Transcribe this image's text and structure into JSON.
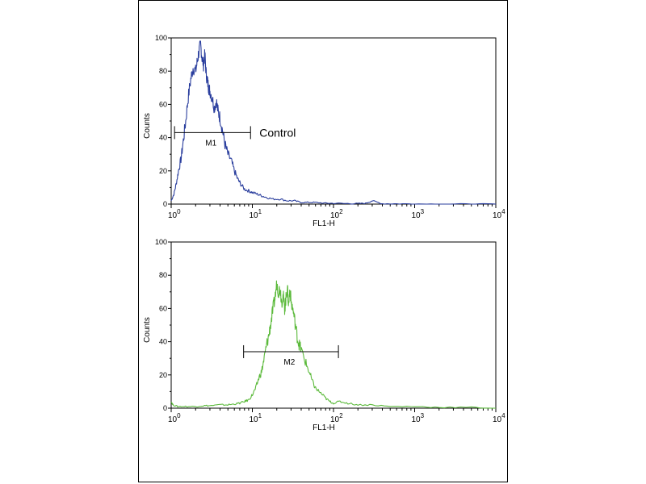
{
  "chart_data": [
    {
      "type": "histogram",
      "panel": "top",
      "xlabel": "FL1-H",
      "ylabel": "Counts",
      "x_scale": "log",
      "xlim": [
        1,
        10000
      ],
      "ylim": [
        0,
        100
      ],
      "x_ticks": [
        {
          "base": "10",
          "exp": "0"
        },
        {
          "base": "10",
          "exp": "1"
        },
        {
          "base": "10",
          "exp": "2"
        },
        {
          "base": "10",
          "exp": "3"
        },
        {
          "base": "10",
          "exp": "4"
        }
      ],
      "y_ticks": [
        "0",
        "20",
        "40",
        "60",
        "80",
        "100"
      ],
      "color": "#2b3f9e",
      "series": [
        {
          "x": [
            1.0,
            1.08,
            1.15,
            1.23,
            1.32,
            1.41,
            1.51,
            1.62,
            1.74,
            1.86,
            2.0,
            2.1,
            2.2,
            2.3,
            2.4,
            2.5,
            2.6,
            2.7,
            2.8,
            2.9,
            3.0,
            3.2,
            3.4,
            3.6,
            3.8,
            4.0,
            4.3,
            4.6,
            5.0,
            5.5,
            6.0,
            6.6,
            7.2,
            8.0,
            9.0,
            10.0,
            11.5,
            13,
            15,
            18,
            22,
            27,
            33,
            40,
            50,
            60,
            80,
            100,
            150,
            200,
            250,
            300,
            400,
            600,
            1000,
            2000,
            5000,
            10000
          ],
          "y": [
            2,
            6,
            12,
            20,
            27,
            38,
            50,
            64,
            75,
            82,
            80,
            86,
            92,
            96,
            88,
            84,
            90,
            78,
            74,
            70,
            68,
            64,
            58,
            62,
            55,
            52,
            44,
            36,
            30,
            26,
            20,
            15,
            12,
            9,
            8,
            7,
            6,
            5,
            4,
            3,
            3,
            2,
            2,
            1,
            1,
            1,
            0.5,
            0.5,
            0.3,
            0.3,
            0.5,
            2,
            0.2,
            0.2,
            0.1,
            0,
            0,
            0
          ]
        }
      ],
      "gate": {
        "label": "M1",
        "x_start": 1.1,
        "x_end": 9.5,
        "y": 43
      },
      "annotation": "Control"
    },
    {
      "type": "histogram",
      "panel": "bottom",
      "xlabel": "FL1-H",
      "ylabel": "Counts",
      "x_scale": "log",
      "xlim": [
        1,
        10000
      ],
      "ylim": [
        0,
        100
      ],
      "x_ticks": [
        {
          "base": "10",
          "exp": "0"
        },
        {
          "base": "10",
          "exp": "1"
        },
        {
          "base": "10",
          "exp": "2"
        },
        {
          "base": "10",
          "exp": "3"
        },
        {
          "base": "10",
          "exp": "4"
        }
      ],
      "y_ticks": [
        "0",
        "20",
        "40",
        "60",
        "80",
        "100"
      ],
      "color": "#5cba3c",
      "series": [
        {
          "x": [
            1.0,
            1.05,
            1.2,
            1.5,
            2.0,
            2.5,
            3.0,
            4.0,
            5.0,
            6.0,
            7.0,
            8.0,
            9.0,
            10,
            11,
            12,
            13,
            14,
            15,
            16,
            17,
            18,
            19,
            20,
            21,
            22,
            23,
            24,
            25,
            26,
            27,
            28,
            29,
            30,
            32,
            34,
            36,
            38,
            40,
            45,
            50,
            55,
            60,
            70,
            80,
            90,
            100,
            120,
            150,
            200,
            300,
            500,
            1000,
            2000,
            5000,
            10000
          ],
          "y": [
            4,
            2,
            1,
            1,
            1,
            1.5,
            1.5,
            2,
            2,
            2.5,
            3,
            4,
            5,
            8,
            12,
            18,
            22,
            30,
            38,
            44,
            52,
            60,
            66,
            75,
            70,
            72,
            64,
            68,
            60,
            66,
            73,
            62,
            72,
            64,
            58,
            50,
            42,
            38,
            35,
            28,
            22,
            16,
            12,
            9,
            6,
            4,
            3,
            4,
            3,
            2,
            2,
            1,
            1,
            0.5,
            0.5,
            0
          ]
        }
      ],
      "gate": {
        "label": "M2",
        "x_start": 7.8,
        "x_end": 115,
        "y": 34
      }
    }
  ]
}
